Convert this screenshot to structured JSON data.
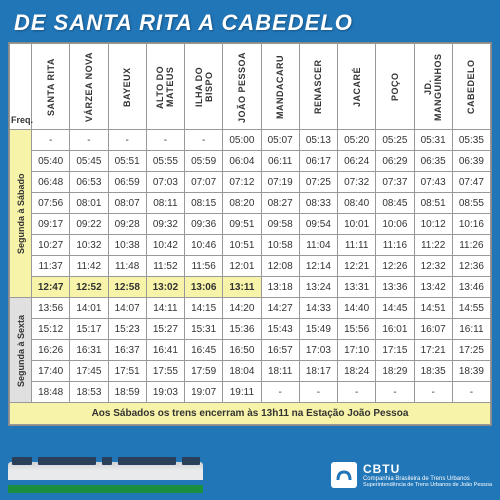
{
  "title": "DE SANTA RITA A CABEDELO",
  "freq_label": "Freq.",
  "stations": [
    "SANTA RITA",
    "VÁRZEA NOVA",
    "BAYEUX",
    "ALTO DO MATEUS",
    "ILHA DO BISPO",
    "JOÃO PESSOA",
    "MANDACARU",
    "RENASCER",
    "JACARÉ",
    "POÇO",
    "JD. MANGUINHOS",
    "CABEDELO"
  ],
  "side_labels": {
    "sat": "Segunda à Sábado",
    "fri": "Segunda à Sexta"
  },
  "rows": [
    [
      "-",
      "-",
      "-",
      "-",
      "-",
      "05:00",
      "05:07",
      "05:13",
      "05:20",
      "05:25",
      "05:31",
      "05:35"
    ],
    [
      "05:40",
      "05:45",
      "05:51",
      "05:55",
      "05:59",
      "06:04",
      "06:11",
      "06:17",
      "06:24",
      "06:29",
      "06:35",
      "06:39"
    ],
    [
      "06:48",
      "06:53",
      "06:59",
      "07:03",
      "07:07",
      "07:12",
      "07:19",
      "07:25",
      "07:32",
      "07:37",
      "07:43",
      "07:47"
    ],
    [
      "07:56",
      "08:01",
      "08:07",
      "08:11",
      "08:15",
      "08:20",
      "08:27",
      "08:33",
      "08:40",
      "08:45",
      "08:51",
      "08:55"
    ],
    [
      "09:17",
      "09:22",
      "09:28",
      "09:32",
      "09:36",
      "09:51",
      "09:58",
      "09:54",
      "10:01",
      "10:06",
      "10:12",
      "10:16"
    ],
    [
      "10:27",
      "10:32",
      "10:38",
      "10:42",
      "10:46",
      "10:51",
      "10:58",
      "11:04",
      "11:11",
      "11:16",
      "11:22",
      "11:26"
    ],
    [
      "11:37",
      "11:42",
      "11:48",
      "11:52",
      "11:56",
      "12:01",
      "12:08",
      "12:14",
      "12:21",
      "12:26",
      "12:32",
      "12:36"
    ],
    [
      "12:47",
      "12:52",
      "12:58",
      "13:02",
      "13:06",
      "13:11",
      "13:18",
      "13:24",
      "13:31",
      "13:36",
      "13:42",
      "13:46"
    ],
    [
      "13:56",
      "14:01",
      "14:07",
      "14:11",
      "14:15",
      "14:20",
      "14:27",
      "14:33",
      "14:40",
      "14:45",
      "14:51",
      "14:55"
    ],
    [
      "15:12",
      "15:17",
      "15:23",
      "15:27",
      "15:31",
      "15:36",
      "15:43",
      "15:49",
      "15:56",
      "16:01",
      "16:07",
      "16:11"
    ],
    [
      "16:26",
      "16:31",
      "16:37",
      "16:41",
      "16:45",
      "16:50",
      "16:57",
      "17:03",
      "17:10",
      "17:15",
      "17:21",
      "17:25"
    ],
    [
      "17:40",
      "17:45",
      "17:51",
      "17:55",
      "17:59",
      "18:04",
      "18:11",
      "18:17",
      "18:24",
      "18:29",
      "18:35",
      "18:39"
    ],
    [
      "18:48",
      "18:53",
      "18:59",
      "19:03",
      "19:07",
      "19:11",
      "-",
      "-",
      "-",
      "-",
      "-",
      "-"
    ]
  ],
  "highlight_cols_row": 7,
  "highlight_col_count": 6,
  "footnote": "Aos Sábados os trens encerram às 13h11 na Estação João Pessoa",
  "logo": {
    "abbr": "CBTU",
    "line2": "Companhia Brasileira de Trens Urbanos",
    "line3": "Superintendência de Trens Urbanos de João Pessoa"
  },
  "colors": {
    "bg": "#2176b8",
    "highlight": "#f7f3a8",
    "gray": "#e0e0e0",
    "border": "#999"
  }
}
